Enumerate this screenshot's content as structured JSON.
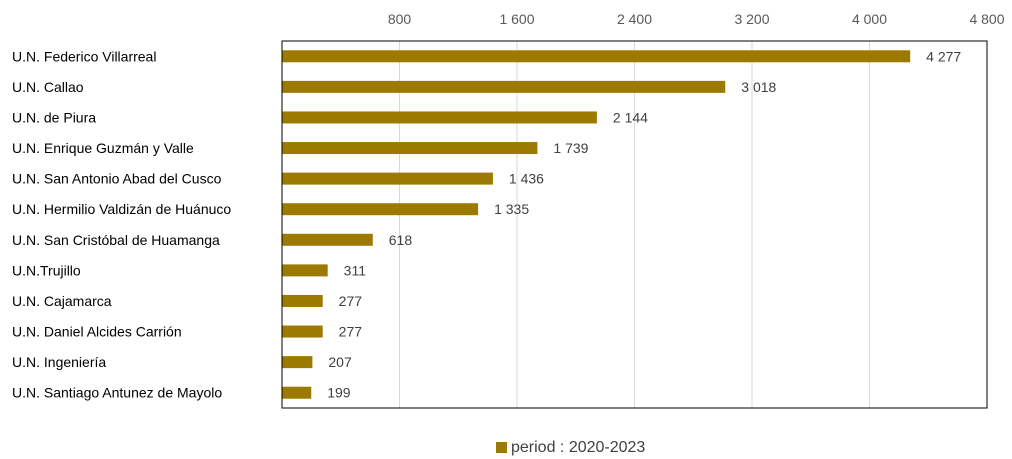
{
  "chart_data": {
    "type": "bar",
    "orientation": "horizontal",
    "categories": [
      "U.N. Federico Villarreal",
      "U.N. Callao",
      "U.N. de Piura",
      "U.N. Enrique Guzmán y Valle",
      "U.N. San Antonio Abad del Cusco",
      "U.N. Hermilio Valdizán de Huánuco",
      "U.N. San Cristóbal de Huamanga",
      "U.N.Trujillo",
      "U.N. Cajamarca",
      "U.N. Daniel Alcides Carrión",
      "U.N. Ingeniería",
      "U.N. Santiago Antunez de Mayolo"
    ],
    "series": [
      {
        "name": "period : 2020-2023",
        "color": "#9C7A00",
        "values": [
          4277,
          3018,
          2144,
          1739,
          1436,
          1335,
          618,
          311,
          277,
          277,
          207,
          199
        ],
        "value_labels": [
          "4 277",
          "3 018",
          "2 144",
          "1 739",
          "1 436",
          "1 335",
          "618",
          "311",
          "277",
          "277",
          "207",
          "199"
        ]
      }
    ],
    "xlim": [
      0,
      4800
    ],
    "xticks": [
      800,
      1600,
      2400,
      3200,
      4000,
      4800
    ],
    "xtick_labels": [
      "800",
      "1 600",
      "2 400",
      "3 200",
      "4 000",
      "4 800"
    ],
    "axis_position": "top",
    "grid": true,
    "legend_position": "bottom-center"
  }
}
